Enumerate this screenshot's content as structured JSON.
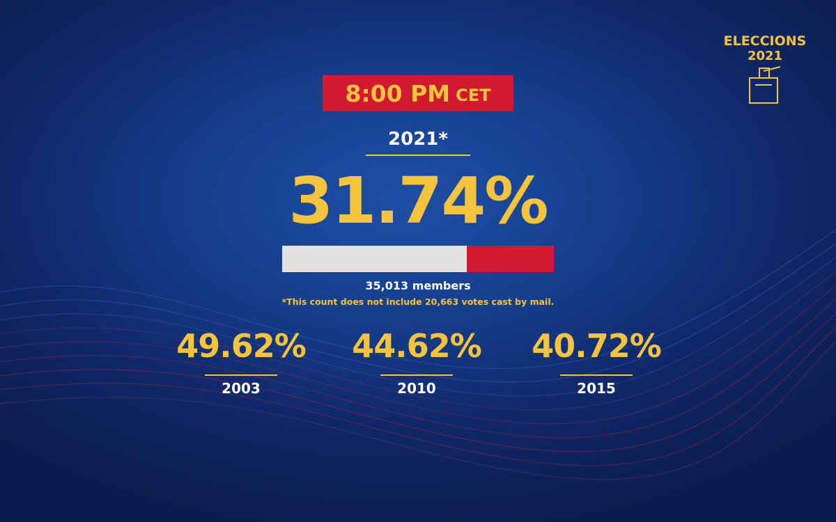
{
  "header": {
    "badge_title": "ELECCIONS",
    "badge_year": "2021"
  },
  "time": {
    "value": "8:00 PM",
    "zone": "CET"
  },
  "current": {
    "year": "2021*",
    "turnout": "31.74%",
    "members": "35,013 members",
    "note": "*This count does not include 20,663 votes cast by mail."
  },
  "history": [
    {
      "turnout": "49.62%",
      "year": "2003"
    },
    {
      "turnout": "44.62%",
      "year": "2010"
    },
    {
      "turnout": "40.72%",
      "year": "2015"
    }
  ]
}
